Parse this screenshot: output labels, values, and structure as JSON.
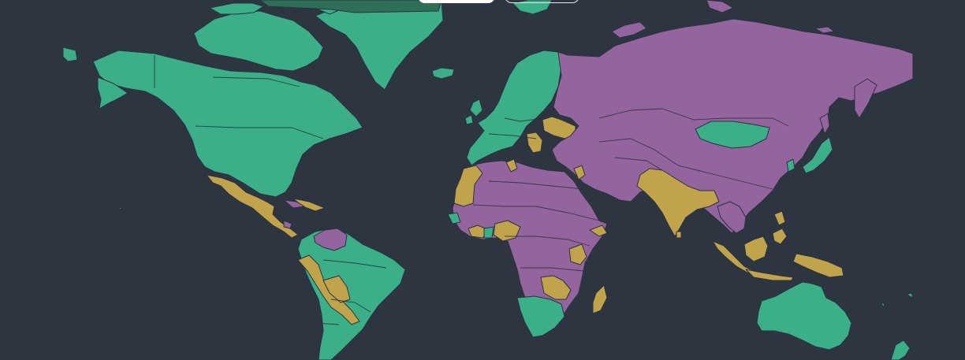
{
  "map": {
    "background": "#2d3541",
    "legend_colors": {
      "green": "#3aaf88",
      "purple": "#94649f",
      "gold": "#c0a34a"
    },
    "highlight_colors": {
      "green_dark": "#2f6f57"
    },
    "controls": [
      {
        "label": "",
        "style": "filled"
      },
      {
        "label": "",
        "style": "outline"
      }
    ]
  }
}
